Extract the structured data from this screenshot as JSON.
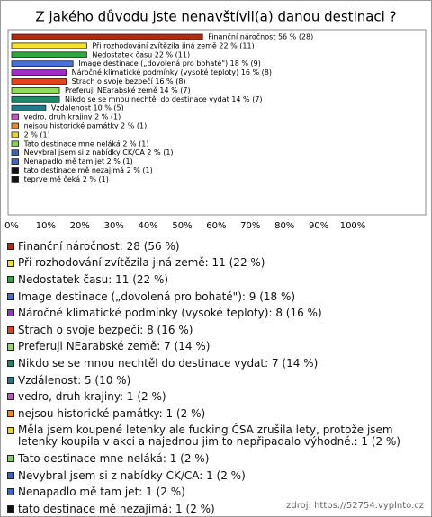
{
  "chart_data": {
    "type": "hbar",
    "title": "Z jakého důvodu jste nenavštívil(a) danou destinaci ?",
    "values": [
      56,
      22,
      22,
      18,
      16,
      16,
      14,
      14,
      10,
      2,
      2,
      2,
      2,
      2,
      2,
      2,
      2
    ],
    "value_labels": [
      "Finanční náročnost 56 % (28)",
      "Při rozhodování zvítězila jiná země 22 % (11)",
      "Nedostatek času 22 % (11)",
      "Image destinace („dovolená pro bohaté\") 18 % (9)",
      "Náročné klimatické podmínky (vysoké teploty) 16 % (8)",
      "Strach o svoje bezpečí 16 % (8)",
      "Preferuji NEarabské země 14 % (7)",
      "Nikdo se se mnou nechtěl do destinace vydat 14 % (7)",
      "Vzdálenost 10 % (5)",
      "vedro, druh krajiny 2 % (1)",
      "nejsou historické památky 2 % (1)",
      "2 % (1)",
      "Tato destinace mne neláká 2 % (1)",
      "Nevybral jsem si z nabídky CK/CA 2 % (1)",
      "Nenapadlo mě tam jet 2 % (1)",
      "tato destinace mě nezajímá 2 % (1)",
      "teprve mě čeká 2 % (1)"
    ],
    "legend_labels": [
      "Finanční náročnost: 28 (56 %)",
      "Při rozhodování zvítězila jiná země: 11 (22 %)",
      "Nedostatek času: 11 (22 %)",
      "Image destinace („dovolená pro bohaté\"): 9 (18 %)",
      "Náročné klimatické podmínky (vysoké teploty): 8 (16 %)",
      "Strach o svoje bezpečí: 8 (16 %)",
      "Preferuji NEarabské země: 7 (14 %)",
      "Nikdo se se mnou nechtěl do destinace vydat: 7 (14 %)",
      "Vzdálenost: 5 (10 %)",
      "vedro, druh krajiny: 1 (2 %)",
      "nejsou historické památky: 1 (2 %)",
      "Měla jsem koupené letenky ale fucking ČSA zrušila lety, protože jsem letenky koupila v akci a najednou jim to nepřipadalo výhodné.: 1 (2 %)",
      "Tato destinace mne neláká: 1 (2 %)",
      "Nevybral jsem si z nabídky CK/CA: 1 (2 %)",
      "Nenapadlo mě tam jet: 1 (2 %)",
      "tato destinace mě nezajímá: 1 (2 %)",
      "teprve mě čeká: 1 (2 %)"
    ],
    "colors": [
      "#b22a10",
      "#f5e32a",
      "#2ea83a",
      "#4a6fd8",
      "#a22cc8",
      "#e0461e",
      "#8edc5a",
      "#1f8a6a",
      "#1e7c8c",
      "#c456c8",
      "#f0861e",
      "#f0d21e",
      "#7ad65a",
      "#3a62c8",
      "#3a66d0",
      "#111111",
      "#111111"
    ],
    "xlim": [
      0,
      100
    ],
    "xticks": [
      {
        "value": 0,
        "label": "0%"
      },
      {
        "value": 10,
        "label": "10%"
      },
      {
        "value": 20,
        "label": "20%"
      },
      {
        "value": 30,
        "label": "30%"
      },
      {
        "value": 40,
        "label": "40%"
      },
      {
        "value": 50,
        "label": "50%"
      },
      {
        "value": 60,
        "label": "60%"
      },
      {
        "value": 70,
        "label": "70%"
      },
      {
        "value": 80,
        "label": "80%"
      },
      {
        "value": 90,
        "label": "90%"
      },
      {
        "value": 100,
        "label": "100%"
      }
    ],
    "source": "zdroj: https://52754.vyplnto.cz"
  }
}
